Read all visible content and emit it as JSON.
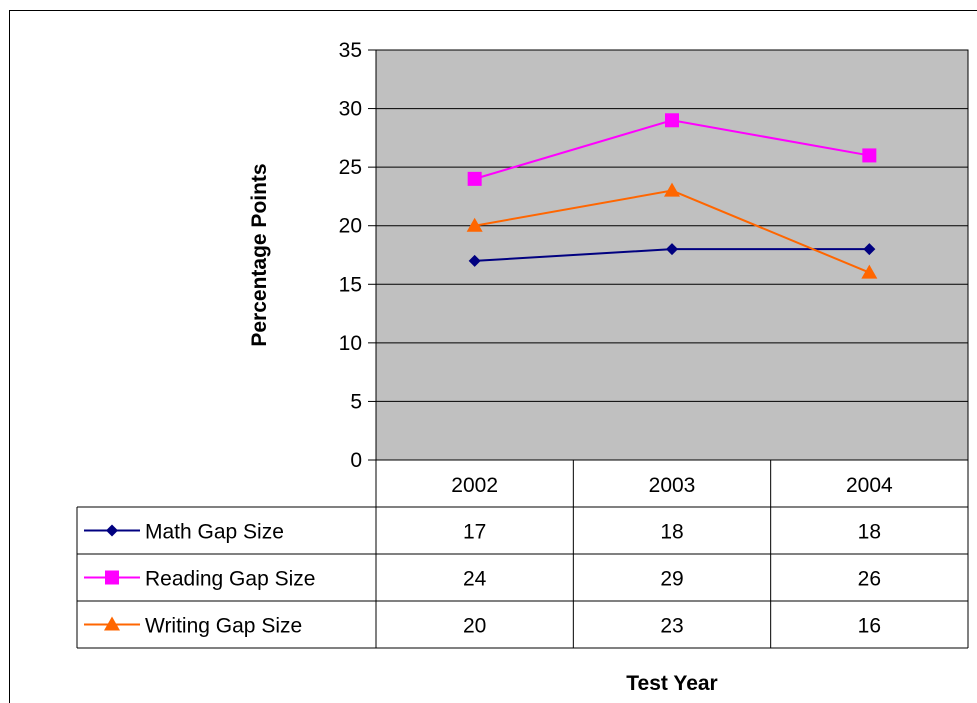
{
  "chart_data": {
    "type": "line",
    "categories": [
      "2002",
      "2003",
      "2004"
    ],
    "series": [
      {
        "name": "Math Gap Size",
        "values": [
          17,
          18,
          18
        ],
        "color": "#000080",
        "marker": "diamond"
      },
      {
        "name": "Reading Gap Size",
        "values": [
          24,
          29,
          26
        ],
        "color": "#ff00ff",
        "marker": "square"
      },
      {
        "name": "Writing Gap Size",
        "values": [
          20,
          23,
          16
        ],
        "color": "#ff6600",
        "marker": "triangle"
      }
    ],
    "xlabel": "Test Year",
    "ylabel": "Percentage Points",
    "ylim": [
      0,
      35
    ],
    "yticks": [
      "0",
      "5",
      "10",
      "15",
      "20",
      "25",
      "30",
      "35"
    ],
    "grid": true,
    "plot_background": "#c0c0c0",
    "legend": "data-table"
  }
}
